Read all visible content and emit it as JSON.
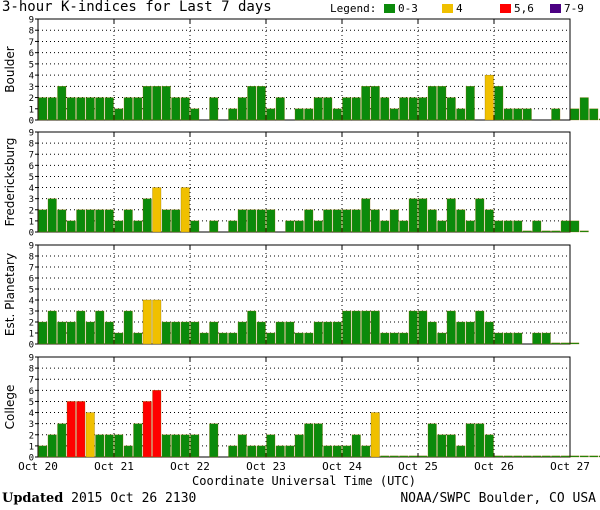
{
  "title": "3-hour K-indices for Last 7 days",
  "legend": {
    "label": "Legend:",
    "items": [
      {
        "label": "0-3",
        "color": "#0b8a0b"
      },
      {
        "label": "4",
        "color": "#f0c000"
      },
      {
        "label": "5,6",
        "color": "#ff0000"
      },
      {
        "label": "7-9",
        "color": "#4b0082"
      }
    ]
  },
  "footer": {
    "updated_label": "Updated",
    "updated_value": "2015 Oct 26 2130",
    "credit": "NOAA/SWPC Boulder, CO USA"
  },
  "chart_data": {
    "type": "bar",
    "xlabel": "Coordinate Universal Time (UTC)",
    "x_ticks": [
      "Oct 20",
      "Oct 21",
      "Oct 22",
      "Oct 23",
      "Oct 24",
      "Oct 25",
      "Oct 26",
      "Oct 27"
    ],
    "ylim": [
      0,
      9
    ],
    "y_ticks": [
      0,
      1,
      2,
      3,
      4,
      5,
      6,
      7,
      8,
      9
    ],
    "series": [
      {
        "name": "Boulder",
        "values": [
          2,
          2,
          3,
          2,
          2,
          2,
          2,
          2,
          1,
          2,
          2,
          3,
          3,
          3,
          2,
          2,
          1,
          0,
          2,
          0,
          1,
          2,
          3,
          3,
          1,
          2,
          0,
          1,
          1,
          2,
          2,
          1,
          2,
          2,
          3,
          3,
          2,
          1,
          2,
          2,
          2,
          3,
          3,
          2,
          1,
          3,
          0,
          4,
          3,
          1,
          1,
          1,
          0,
          0,
          1,
          0,
          1,
          2,
          1,
          0.1
        ]
      },
      {
        "name": "Fredericksburg",
        "values": [
          2,
          3,
          2,
          1,
          2,
          2,
          2,
          2,
          1,
          2,
          1,
          3,
          4,
          2,
          2,
          4,
          1,
          0,
          1,
          0,
          1,
          2,
          2,
          2,
          2,
          0,
          1,
          1,
          2,
          1,
          2,
          2,
          2,
          2,
          3,
          2,
          1,
          2,
          1,
          3,
          3,
          2,
          1,
          3,
          2,
          1,
          3,
          2,
          1,
          1,
          1,
          0.1,
          1,
          0.1,
          0.1,
          1,
          1,
          0.1
        ]
      },
      {
        "name": "Est. Planetary",
        "values": [
          2,
          3,
          2,
          2,
          3,
          2,
          3,
          2,
          1,
          3,
          1,
          4,
          4,
          2,
          2,
          2,
          2,
          1,
          2,
          1,
          1,
          2,
          3,
          2,
          1,
          2,
          2,
          1,
          1,
          2,
          2,
          2,
          3,
          3,
          3,
          3,
          1,
          1,
          1,
          3,
          3,
          2,
          1,
          3,
          2,
          2,
          3,
          2,
          1,
          1,
          1,
          0,
          1,
          1,
          0.1,
          0.1,
          0.1
        ]
      },
      {
        "name": "College",
        "values": [
          1,
          2,
          3,
          5,
          5,
          4,
          2,
          2,
          2,
          1,
          3,
          5,
          6,
          2,
          2,
          2,
          2,
          0,
          3,
          0,
          1,
          2,
          1,
          1,
          2,
          1,
          1,
          2,
          3,
          3,
          1,
          1,
          1,
          2,
          1,
          4,
          0.1,
          0.1,
          0.1,
          0.1,
          0.1,
          3,
          2,
          2,
          1,
          3,
          3,
          2,
          0.1,
          0.1,
          0.1,
          0.1,
          0.1,
          0.1,
          0.1,
          0.1,
          0.1,
          0.1,
          0.1,
          0.1,
          0.1
        ]
      }
    ]
  }
}
